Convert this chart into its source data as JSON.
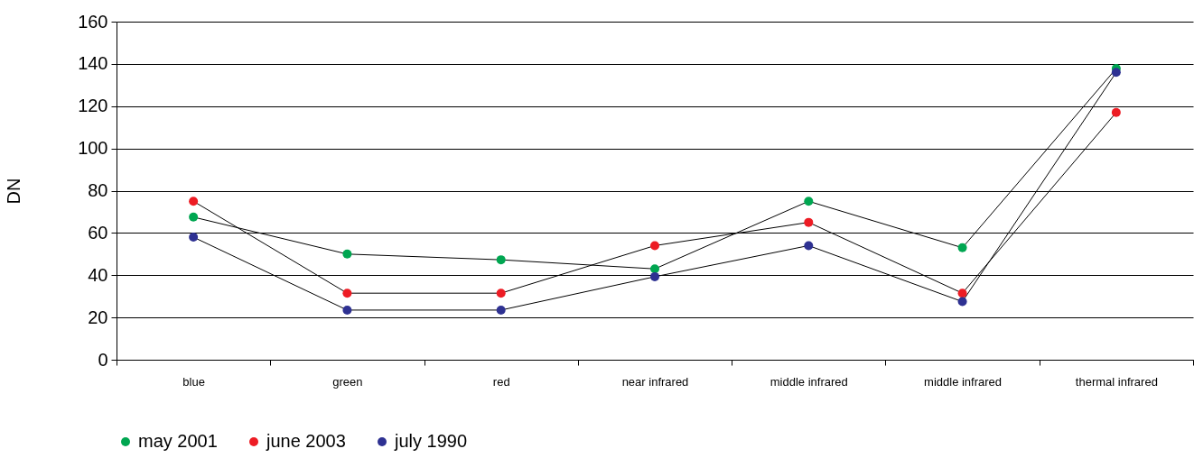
{
  "chart_data": {
    "type": "line",
    "ylabel": "DN",
    "categories": [
      "blue",
      "green",
      "red",
      "near infrared",
      "middle infrared",
      "middle infrared",
      "thermal infrared"
    ],
    "series": [
      {
        "name": "may 2001",
        "color": "#00a651",
        "values": [
          67.5,
          50,
          47.3,
          43,
          75,
          53,
          137.8
        ]
      },
      {
        "name": "june 2003",
        "color": "#ed1c24",
        "values": [
          75,
          31.5,
          31.5,
          54,
          65,
          31.5,
          117
        ]
      },
      {
        "name": "july 1990",
        "color": "#2e3192",
        "values": [
          58,
          23.5,
          23.5,
          39.3,
          54,
          27.5,
          136
        ]
      }
    ],
    "ylim": [
      0,
      160
    ],
    "yticks": [
      0,
      20,
      40,
      60,
      80,
      100,
      120,
      140,
      160
    ],
    "grid": "y",
    "legend": "bottom",
    "marker": "circle"
  }
}
